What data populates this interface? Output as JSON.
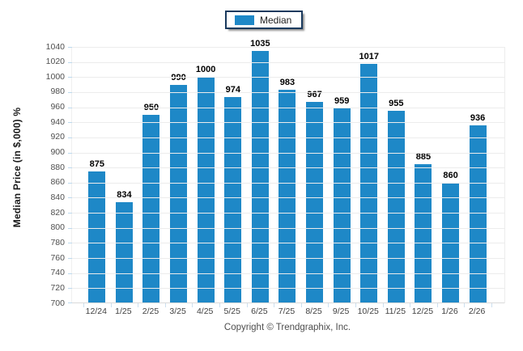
{
  "chart_data": {
    "type": "bar",
    "categories": [
      "12/24",
      "1/25",
      "2/25",
      "3/25",
      "4/25",
      "5/25",
      "6/25",
      "7/25",
      "8/25",
      "9/25",
      "10/25",
      "11/25",
      "12/25",
      "1/26",
      "2/26"
    ],
    "series": [
      {
        "name": "Median",
        "values": [
          875,
          834,
          950,
          990,
          1000,
          974,
          1035,
          983,
          967,
          959,
          1017,
          955,
          885,
          860,
          936
        ]
      }
    ],
    "title": "",
    "xlabel": "",
    "ylabel": "Median Price (in $,000) %",
    "ylim": [
      700,
      1040
    ],
    "ytick_step": 20,
    "grid": "horizontal",
    "legend_position": "top-center",
    "colors": {
      "bar": "#1E88C7",
      "legend_border": "#1A3A5E",
      "gridline": "#ECECEC",
      "axis_tick": "#BCD9EE",
      "value_label": "#000000",
      "tick_label": "#4F4F4F"
    }
  },
  "footer": {
    "copyright": "Copyright © Trendgraphix, Inc."
  }
}
